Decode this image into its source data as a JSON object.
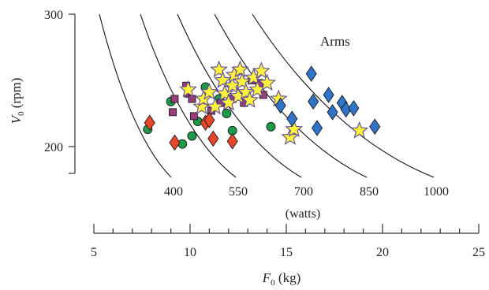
{
  "chart_data": {
    "type": "scatter",
    "annotation": "Arms",
    "y_axis": {
      "label_main": "V",
      "label_sub": "0",
      "label_unit": " (rpm)",
      "ylim": [
        180,
        300
      ],
      "ticks": [
        200,
        300
      ]
    },
    "power_axis": {
      "unit_label": "(watts)",
      "curves": [
        {
          "label": "400",
          "watts": 400
        },
        {
          "label": "550",
          "watts": 550
        },
        {
          "label": "700",
          "watts": 700
        },
        {
          "label": "850",
          "watts": 850
        },
        {
          "label": "1000",
          "watts": 1000
        }
      ]
    },
    "x_axis": {
      "label_main": "F",
      "label_sub": "0",
      "label_unit": " (kg)",
      "xlim": [
        5,
        25
      ],
      "major_ticks": [
        5,
        10,
        15,
        20,
        25
      ],
      "minor_step": 1
    },
    "series": [
      {
        "marker": "circle",
        "color": "#1e9a4b",
        "points": [
          [
            7.8,
            213
          ],
          [
            9.0,
            234
          ],
          [
            9.6,
            202
          ],
          [
            10.1,
            208
          ],
          [
            10.4,
            219
          ],
          [
            10.8,
            245
          ],
          [
            11.5,
            236
          ],
          [
            11.9,
            225
          ],
          [
            12.2,
            212
          ],
          [
            14.2,
            215
          ]
        ]
      },
      {
        "marker": "square",
        "color": "#9b3c7c",
        "points": [
          [
            9.2,
            236
          ],
          [
            9.1,
            226
          ],
          [
            9.8,
            246
          ],
          [
            9.9,
            240
          ],
          [
            10.1,
            236
          ],
          [
            10.2,
            223
          ],
          [
            11.1,
            227
          ],
          [
            11.6,
            233
          ],
          [
            12.2,
            236
          ],
          [
            12.8,
            233
          ],
          [
            13.2,
            250
          ],
          [
            13.6,
            248
          ],
          [
            13.8,
            239
          ]
        ]
      },
      {
        "marker": "diamond",
        "color": "#e8462a",
        "points": [
          [
            7.9,
            218
          ],
          [
            9.2,
            203
          ],
          [
            10.8,
            218
          ],
          [
            11.0,
            220
          ],
          [
            11.2,
            206
          ],
          [
            12.2,
            204
          ]
        ]
      },
      {
        "marker": "star",
        "color": "#fff23a",
        "points": [
          [
            9.9,
            243
          ],
          [
            10.6,
            230
          ],
          [
            10.7,
            236
          ],
          [
            11.0,
            241
          ],
          [
            11.3,
            230
          ],
          [
            11.5,
            258
          ],
          [
            11.7,
            250
          ],
          [
            11.8,
            240
          ],
          [
            12.0,
            233
          ],
          [
            12.2,
            246
          ],
          [
            12.3,
            254
          ],
          [
            12.5,
            238
          ],
          [
            12.6,
            258
          ],
          [
            12.7,
            249
          ],
          [
            12.9,
            241
          ],
          [
            13.1,
            235
          ],
          [
            13.3,
            252
          ],
          [
            13.5,
            243
          ],
          [
            13.7,
            257
          ],
          [
            14.0,
            248
          ],
          [
            14.6,
            236
          ],
          [
            15.2,
            207
          ],
          [
            15.4,
            213
          ],
          [
            18.8,
            212
          ]
        ]
      },
      {
        "marker": "diamond",
        "color": "#2f74c9",
        "points": [
          [
            14.7,
            231
          ],
          [
            15.3,
            221
          ],
          [
            16.3,
            255
          ],
          [
            16.6,
            214
          ],
          [
            16.4,
            234
          ],
          [
            17.2,
            239
          ],
          [
            17.4,
            226
          ],
          [
            17.9,
            233
          ],
          [
            18.1,
            228
          ],
          [
            18.5,
            229
          ],
          [
            19.6,
            215
          ]
        ]
      }
    ]
  }
}
